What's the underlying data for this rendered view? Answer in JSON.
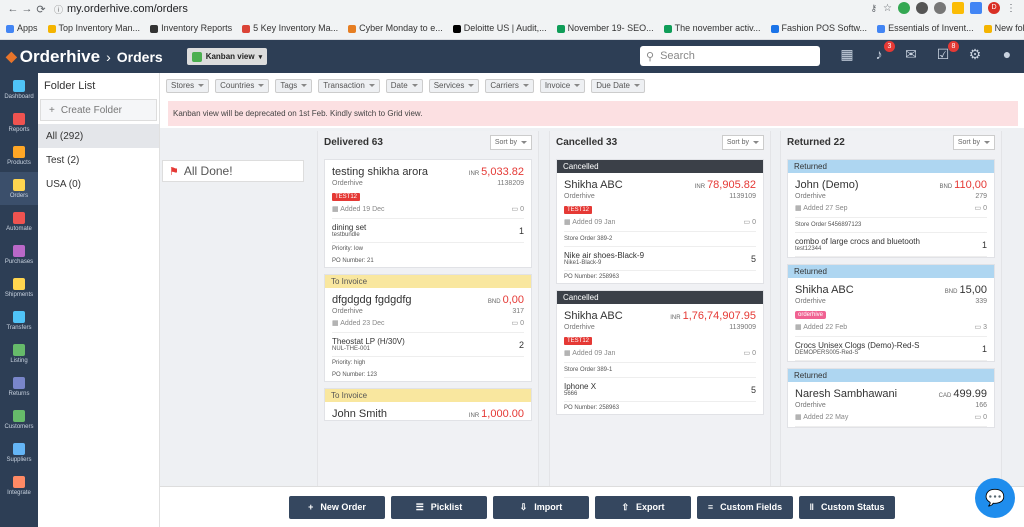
{
  "browser": {
    "url": "my.orderhive.com/orders",
    "profile_initial": "D",
    "bookmarks": [
      "Apps",
      "Top Inventory Man...",
      "Inventory Reports",
      "5 Key Inventory Ma...",
      "Cyber Monday to e...",
      "Deloitte US | Audit,...",
      "November 19- SEO...",
      "The november activ...",
      "Fashion POS Softw...",
      "Essentials of Invent...",
      "New folder"
    ]
  },
  "app": {
    "name": "Orderhive",
    "section": "Orders",
    "view_button": "Kanban view",
    "search_placeholder": "Search",
    "notif_count": "3",
    "task_count": "8"
  },
  "sidebar": [
    "Dashboard",
    "Reports",
    "Products",
    "Orders",
    "Automate",
    "Purchases",
    "Shipments",
    "Transfers",
    "Listing",
    "Returns",
    "Customers",
    "Suppliers",
    "Integrate"
  ],
  "folders": {
    "title": "Folder List",
    "create": "Create Folder",
    "items": [
      "All (292)",
      "Test (2)",
      "USA (0)"
    ]
  },
  "filters": [
    "Stores",
    "Countries",
    "Tags",
    "Transaction",
    "Date",
    "Services",
    "Carriers",
    "Invoice",
    "Due Date"
  ],
  "banner": "Kanban view will be deprecated on 1st Feb. Kindly switch to Grid view.",
  "all_done": "All Done!",
  "sort_label": "Sort by",
  "columns": [
    {
      "title": "Delivered 63",
      "cards": [
        {
          "name": "testing shikha arora",
          "cur": "INR",
          "amt": "5,033.82",
          "store": "Orderhive",
          "id": "1138209",
          "tag": "TEST12",
          "added": "Added 19 Dec",
          "notes": "0",
          "items": [
            {
              "name": "dining set",
              "sku": "testbundle",
              "qty": "1"
            }
          ],
          "priority": "Priority: low",
          "po": "PO Number: 21"
        },
        {
          "status": "To Invoice",
          "name": "dfgdgdg fgdgdfg",
          "cur": "BND",
          "amt": "0,00",
          "store": "Orderhive",
          "id": "317",
          "added": "Added 23 Dec",
          "notes": "0",
          "items": [
            {
              "name": "Theostat LP (H/30V)",
              "sku": "NUL-THE-001",
              "qty": "2"
            }
          ],
          "priority": "Priority: high",
          "po": "PO Number: 123"
        },
        {
          "status": "To Invoice",
          "name": "John Smith",
          "cur": "INR",
          "amt": "1,000.00"
        }
      ]
    },
    {
      "title": "Cancelled 33",
      "cards": [
        {
          "status": "Cancelled",
          "name": "Shikha ABC",
          "cur": "INR",
          "amt": "78,905.82",
          "store": "Orderhive",
          "id": "1139109",
          "tag": "TEST12",
          "added": "Added 09 Jan",
          "notes": "0",
          "storeorder": "Store Order 389-2",
          "items": [
            {
              "name": "Nike air shoes-Black-9",
              "sku": "Nike1-Black-9",
              "qty": "5"
            }
          ],
          "po": "PO Number: 258963"
        },
        {
          "status": "Cancelled",
          "name": "Shikha ABC",
          "cur": "INR",
          "amt": "1,76,74,907.95",
          "store": "Orderhive",
          "id": "1139009",
          "tag": "TEST12",
          "added": "Added 09 Jan",
          "notes": "0",
          "storeorder": "Store Order 389-1",
          "items": [
            {
              "name": "Iphone X",
              "sku": "5666",
              "qty": "5"
            }
          ],
          "po": "PO Number: 258963"
        }
      ]
    },
    {
      "title": "Returned 22",
      "cards": [
        {
          "status": "Returned",
          "name": "John (Demo)",
          "cur": "BND",
          "amt": "110,00",
          "store": "Orderhive",
          "id": "279",
          "added": "Added 27 Sep",
          "notes": "0",
          "storeorder": "Store Order 5456897123",
          "items": [
            {
              "name": "combo of large crocs and bluetooth",
              "sku": "test12344",
              "qty": "1"
            }
          ]
        },
        {
          "status": "Returned",
          "name": "Shikha ABC",
          "cur": "BND",
          "amt": "15,00",
          "dark": true,
          "store": "Orderhive",
          "id": "339",
          "pinktag": "orderhive",
          "added": "Added 22 Feb",
          "notes": "3",
          "items": [
            {
              "name": "Crocs Unisex Clogs (Demo)-Red-S",
              "sku": "DEMOPERS005-Red-S",
              "qty": "1"
            }
          ]
        },
        {
          "status": "Returned",
          "name": "Naresh Sambhawani",
          "cur": "CAD",
          "amt": "499.99",
          "dark": true,
          "store": "Orderhive",
          "id": "166",
          "added": "Added 22 May",
          "notes": "0"
        }
      ]
    }
  ],
  "footer": [
    {
      "icon": "+",
      "label": "New Order"
    },
    {
      "icon": "☰",
      "label": "Picklist"
    },
    {
      "icon": "⇩",
      "label": "Import"
    },
    {
      "icon": "⇧",
      "label": "Export"
    },
    {
      "icon": "≡",
      "label": "Custom Fields"
    },
    {
      "icon": "‖",
      "label": "Custom Status"
    }
  ],
  "colors": {
    "header": "#2d3e55",
    "accent": "#e8742a",
    "amount": "#e53935",
    "invoice": "#f9e79f",
    "cancelled": "#3b4048",
    "returned": "#aed6f1"
  }
}
